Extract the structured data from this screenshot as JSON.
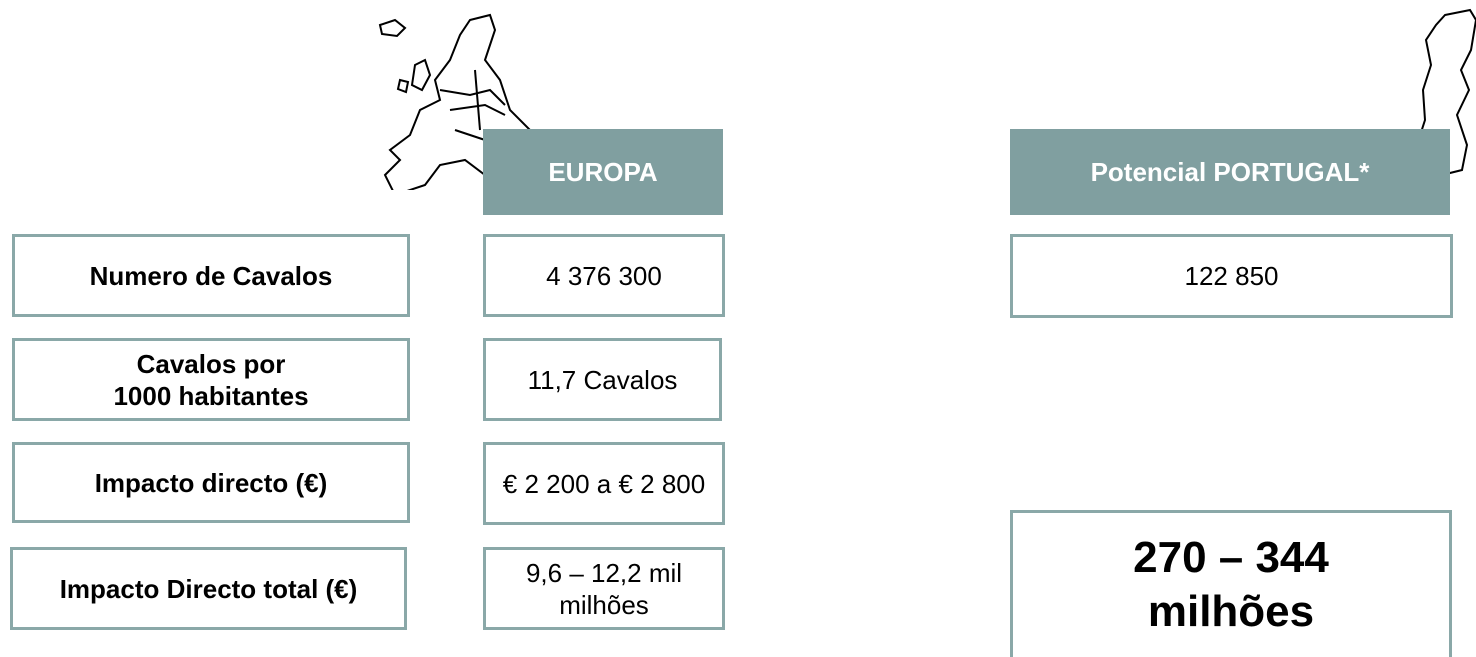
{
  "header": {
    "europe": "EUROPA",
    "portugal": "Potencial PORTUGAL*"
  },
  "rows": [
    {
      "label": [
        "Numero de Cavalos"
      ],
      "europe": "4 376 300",
      "portugal": "122 850"
    },
    {
      "label": [
        "Cavalos por",
        "1000 habitantes"
      ],
      "europe": "11,7 Cavalos"
    },
    {
      "label": [
        "Impacto directo (€)"
      ],
      "europe": "€ 2 200 a € 2 800"
    },
    {
      "label": [
        "Impacto Directo total (€)"
      ],
      "europe": "9,6 – 12,2 mil milhões"
    }
  ],
  "portugal_total": [
    "270 –  344",
    "milhões"
  ]
}
